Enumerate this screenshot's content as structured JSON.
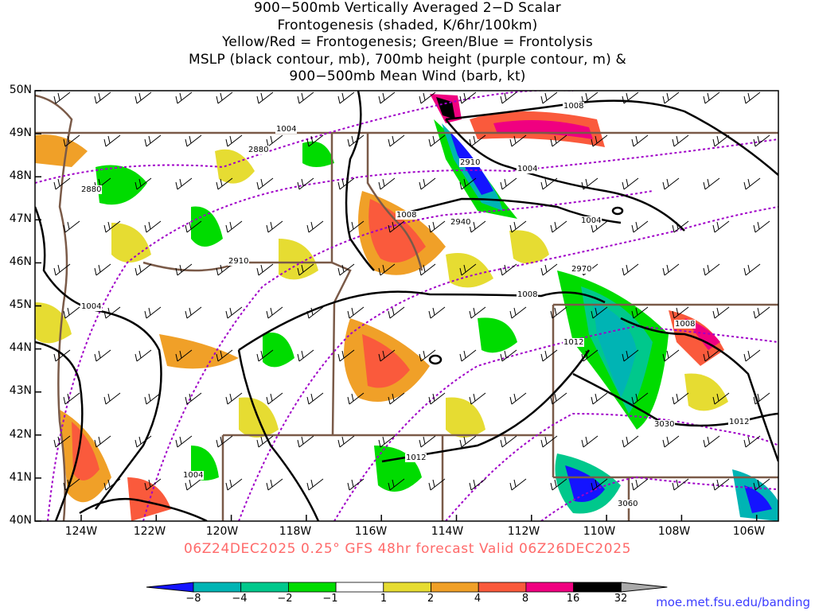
{
  "title_lines": [
    "900−500mb Vertically Averaged 2−D Scalar",
    "Frontogenesis (shaded, K/6hr/100km)",
    "Yellow/Red = Frontogenesis;  Green/Blue = Frontolysis",
    "MSLP (black contour, mb), 700mb height (purple contour, m) &",
    "900−500mb Mean Wind (barb, kt)"
  ],
  "subtitle": "06Z24DEC2025 0.25° GFS 48hr forecast Valid 06Z26DEC2025",
  "source": "moe.met.fsu.edu/banding",
  "lat_labels": [
    "50N",
    "49N",
    "48N",
    "47N",
    "46N",
    "45N",
    "44N",
    "43N",
    "42N",
    "41N",
    "40N"
  ],
  "lon_labels": [
    "124W",
    "122W",
    "120W",
    "118W",
    "116W",
    "114W",
    "112W",
    "110W",
    "108W",
    "106W"
  ],
  "mslp_labels": [
    "1004",
    "1008",
    "1004",
    "1008",
    "1004",
    "1008",
    "1012",
    "1008",
    "1012",
    "1012",
    "1004",
    "1004"
  ],
  "height_labels": [
    "2880",
    "2880",
    "2910",
    "2910",
    "2940",
    "2970",
    "3030",
    "3060"
  ],
  "colorbar": {
    "labels": [
      "−8",
      "−4",
      "−2",
      "−1",
      "1",
      "2",
      "4",
      "8",
      "16",
      "32"
    ],
    "colors": [
      "#1414ff",
      "#00b4b4",
      "#00c88c",
      "#00dc00",
      "#ffffff",
      "#e6dc32",
      "#f0a028",
      "#fa5a3c",
      "#f00080",
      "#000000",
      "#aaaaaa"
    ]
  },
  "colors": {
    "mslp": "#000000",
    "height": "#a000c8",
    "borders": "#7a5a48",
    "barbs": "#000000",
    "subtitle": "#ff6a6a",
    "source": "#3b3bff"
  }
}
